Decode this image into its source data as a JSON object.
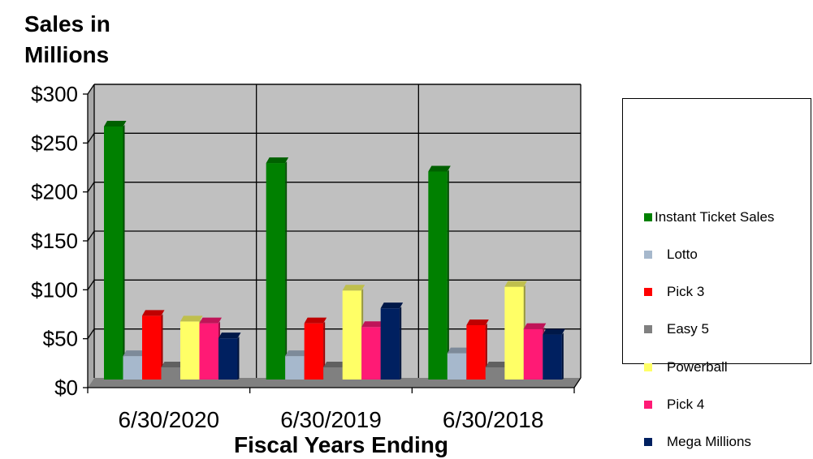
{
  "chart_data": {
    "type": "bar",
    "variant": "3d-clustered",
    "title": [
      "Sales in",
      "Millions"
    ],
    "xlabel": "Fiscal Years Ending",
    "ylim": [
      0,
      300
    ],
    "ytick_values": [
      0,
      50,
      100,
      150,
      200,
      250,
      300
    ],
    "ytick_labels": [
      "$0",
      "$50",
      "$100",
      "$150",
      "$200",
      "$250",
      "$300"
    ],
    "categories": [
      "6/30/2020",
      "6/30/2019",
      "6/30/2018"
    ],
    "series": [
      {
        "name": "Instant Ticket Sales",
        "color": "#008000",
        "values": [
          270,
          231,
          222
        ]
      },
      {
        "name": "Lotto",
        "color": "#a6b8cc",
        "values": [
          25,
          25,
          28
        ]
      },
      {
        "name": "Pick 3",
        "color": "#ff0000",
        "values": [
          68,
          60,
          58
        ]
      },
      {
        "name": "Easy 5",
        "color": "#808080",
        "values": [
          13,
          13,
          13
        ]
      },
      {
        "name": "Powerball",
        "color": "#ffff66",
        "values": [
          62,
          95,
          99
        ]
      },
      {
        "name": "Pick 4",
        "color": "#ff1a75",
        "values": [
          60,
          56,
          54
        ]
      },
      {
        "name": "Mega Millions",
        "color": "#002060",
        "values": [
          44,
          76,
          48
        ]
      }
    ],
    "grid": true,
    "legend_position": "right",
    "wall_color": "#c0c0c0",
    "floor_color": "#808080"
  }
}
